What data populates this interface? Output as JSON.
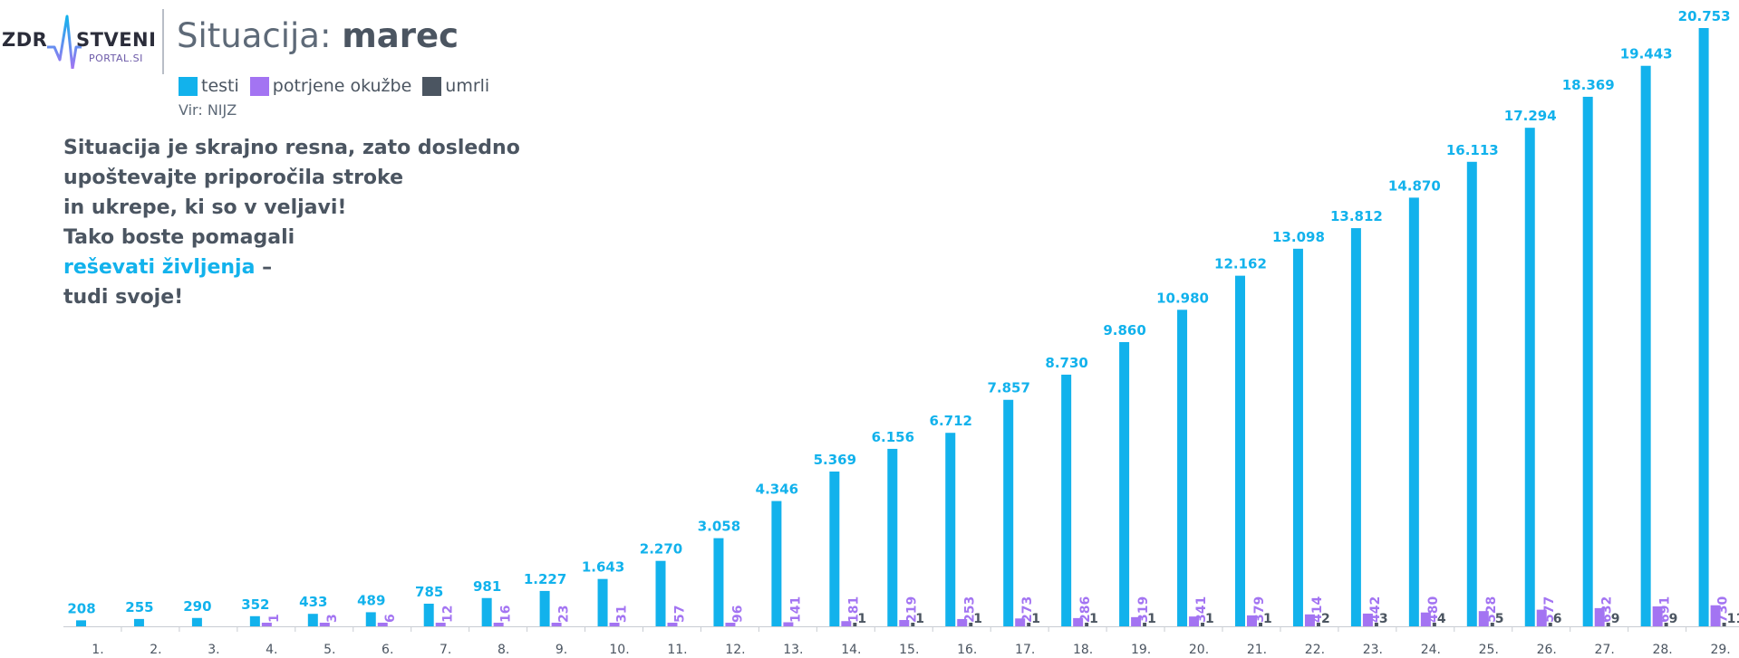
{
  "logo": {
    "word_left": "ZDR",
    "word_right": "STVENI",
    "sub": "PORTAL.SI"
  },
  "header": {
    "title_prefix": "Situacija: ",
    "title_bold": "marec",
    "source": "Vir: NIJZ"
  },
  "message": {
    "line1": "Situacija je skrajno resna, zato dosledno",
    "line2": "upoštevajte priporočila stroke",
    "line3": "in ukrepe, ki so v veljavi!",
    "line4": "Tako boste pomagali",
    "line5_highlight": "reševati življenja",
    "line5_rest": " –",
    "line6": "tudi svoje!"
  },
  "colors": {
    "tests": "#12b2ec",
    "confirmed": "#a374f2",
    "deaths": "#4b5561",
    "text": "#4b5561",
    "axis": "#c8ccd2"
  },
  "chart_data": {
    "type": "bar",
    "categories": [
      "1.",
      "2.",
      "3.",
      "4.",
      "5.",
      "6.",
      "7.",
      "8.",
      "9.",
      "10.",
      "11.",
      "12.",
      "13.",
      "14.",
      "15.",
      "16.",
      "17.",
      "18.",
      "19.",
      "20.",
      "21.",
      "22.",
      "23.",
      "24.",
      "25.",
      "26.",
      "27.",
      "28.",
      "29."
    ],
    "series": [
      {
        "name": "testi",
        "values": [
          208,
          255,
          290,
          352,
          433,
          489,
          785,
          981,
          1227,
          1643,
          2270,
          3058,
          4346,
          5369,
          6156,
          6712,
          7857,
          8730,
          9860,
          10980,
          12162,
          13098,
          13812,
          14870,
          16113,
          17294,
          18369,
          19443,
          20753
        ],
        "labels": [
          "208",
          "255",
          "290",
          "352",
          "433",
          "489",
          "785",
          "981",
          "1.227",
          "1.643",
          "2.270",
          "3.058",
          "4.346",
          "5.369",
          "6.156",
          "6.712",
          "7.857",
          "8.730",
          "9.860",
          "10.980",
          "12.162",
          "13.098",
          "13.812",
          "14.870",
          "16.113",
          "17.294",
          "18.369",
          "19.443",
          "20.753"
        ]
      },
      {
        "name": "potrjene okužbe",
        "values": [
          0,
          0,
          0,
          1,
          3,
          6,
          12,
          16,
          23,
          31,
          57,
          96,
          141,
          181,
          219,
          253,
          273,
          286,
          319,
          341,
          379,
          414,
          442,
          480,
          528,
          577,
          632,
          691,
          730
        ],
        "labels": [
          "",
          "",
          "",
          "1",
          "3",
          "6",
          "12",
          "16",
          "23",
          "31",
          "57",
          "96",
          "141",
          "181",
          "219",
          "253",
          "273",
          "286",
          "319",
          "341",
          "379",
          "414",
          "442",
          "480",
          "528",
          "577",
          "632",
          "691",
          "730"
        ]
      },
      {
        "name": "umrli",
        "values": [
          0,
          0,
          0,
          0,
          0,
          0,
          0,
          0,
          0,
          0,
          0,
          0,
          0,
          1,
          1,
          1,
          1,
          1,
          1,
          1,
          1,
          2,
          3,
          4,
          5,
          6,
          9,
          9,
          11
        ],
        "labels": [
          "",
          "",
          "",
          "",
          "",
          "",
          "",
          "",
          "",
          "",
          "",
          "",
          "",
          "1",
          "1",
          "1",
          "1",
          "1",
          "1",
          "1",
          "1",
          "2",
          "3",
          "4",
          "5",
          "6",
          "9",
          "9",
          "11"
        ]
      }
    ],
    "title": "Situacija: marec",
    "ylim": [
      0,
      20753
    ],
    "grid": false,
    "legend": "top-left"
  }
}
